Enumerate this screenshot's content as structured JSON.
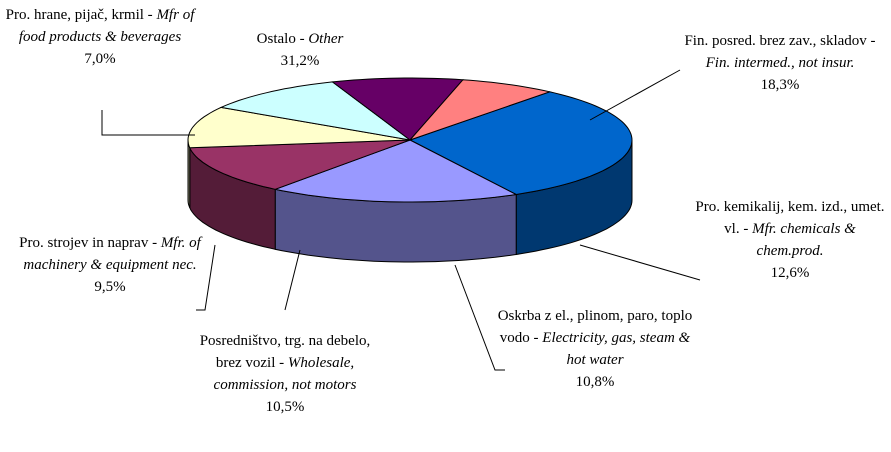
{
  "chart_data": {
    "type": "pie",
    "categories": [
      "Ostalo -",
      "Fin. posred. brez zav., skladov -",
      "Pro. kemikalij, kem. izd., umet. vl. -",
      "Oskrba z el., plinom, paro, toplo vodo -",
      "Posredništvo, trg. na debelo, brez vozil -",
      "Pro. strojev in naprav -",
      "Pro. hrane, pijač, krmil -"
    ],
    "categories_en": [
      "Other",
      "Fin. intermed., not insur.",
      "Mfr. chemicals & chem.prod.",
      "Electricity, gas, steam & hot water",
      "Wholesale, commission, not motors",
      "Mfr. of machinery & equipment nec.",
      "Mfr of food products & beverages"
    ],
    "values": [
      31.2,
      18.3,
      12.6,
      10.8,
      10.5,
      9.5,
      7.0
    ],
    "value_labels": [
      "31,2%",
      "18,3%",
      "12,6%",
      "10,8%",
      "10,5%",
      "9,5%",
      "7,0%"
    ],
    "colors": [
      "#0066cc",
      "#9999ff",
      "#993366",
      "#ffffcc",
      "#ccffff",
      "#660066",
      "#ff8080"
    ]
  }
}
